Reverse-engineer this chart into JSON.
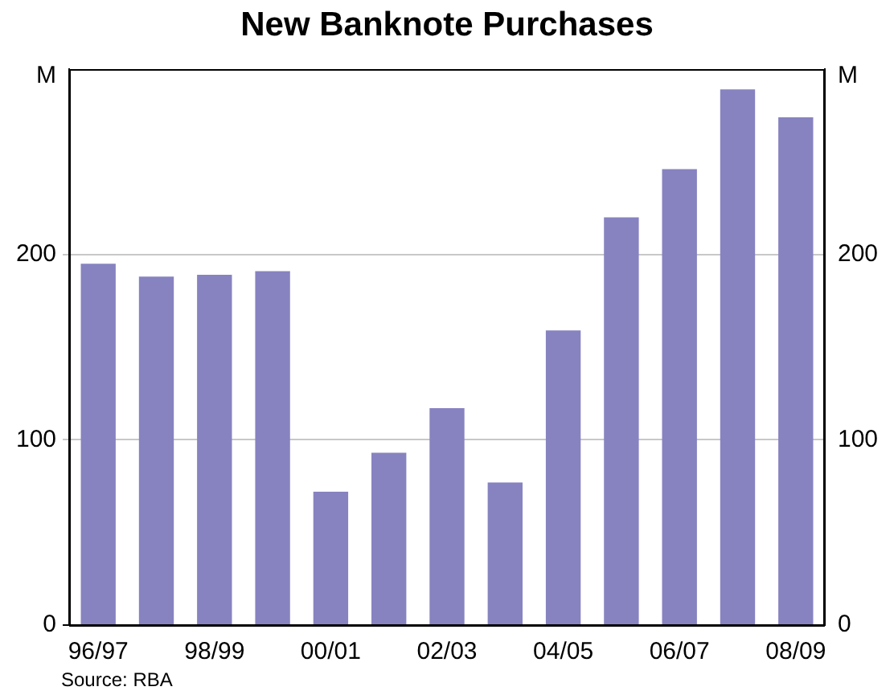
{
  "chart_data": {
    "type": "bar",
    "title": "New Banknote Purchases",
    "ylabel": "M",
    "y2label": "M",
    "categories": [
      "96/97",
      null,
      "98/99",
      null,
      "00/01",
      null,
      "02/03",
      null,
      "04/05",
      null,
      "06/07",
      null,
      "08/09"
    ],
    "values": [
      195,
      188,
      189,
      191,
      72,
      93,
      117,
      77,
      159,
      220,
      246,
      289,
      274
    ],
    "color": "#8783c0",
    "ylim": [
      0,
      300
    ],
    "yticks": [
      0,
      100,
      200
    ],
    "y2lim": [
      0,
      300
    ],
    "y2ticks": [
      0,
      100,
      200
    ],
    "grid": "y",
    "legend": false,
    "annotations": [
      "Source: RBA"
    ]
  }
}
